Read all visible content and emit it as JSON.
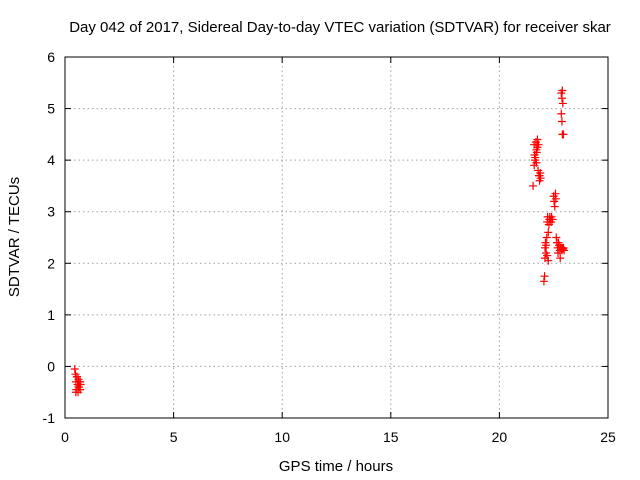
{
  "chart_data": {
    "type": "scatter",
    "title": "Day 042 of 2017, Sidereal Day-to-day VTEC variation (SDTVAR) for receiver skar",
    "xlabel": "GPS time / hours",
    "ylabel": "SDTVAR / TECUs",
    "xlim": [
      0,
      25
    ],
    "ylim": [
      -1,
      6
    ],
    "xticks": [
      "0",
      "5",
      "10",
      "15",
      "20",
      "25"
    ],
    "yticks": [
      "-1",
      "0",
      "1",
      "2",
      "3",
      "4",
      "5",
      "6"
    ],
    "grid": true,
    "marker": "plus",
    "color": "#ff0000",
    "series": [
      {
        "x": [
          0.45,
          0.48,
          0.5,
          0.52,
          0.55,
          0.58,
          0.6,
          0.62,
          0.65,
          0.68,
          0.7,
          0.72,
          0.5,
          0.55,
          0.62,
          0.7,
          21.55,
          21.6,
          21.6,
          21.62,
          21.65,
          21.68,
          21.7,
          21.7,
          21.72,
          21.75,
          21.78,
          21.8,
          21.82,
          21.85,
          21.88,
          21.9,
          21.65,
          21.75,
          21.85,
          22.05,
          22.08,
          22.1,
          22.1,
          22.12,
          22.15,
          22.15,
          22.18,
          22.2,
          22.2,
          22.22,
          22.25,
          22.25,
          22.28,
          22.3,
          22.32,
          22.35,
          22.38,
          22.4,
          22.45,
          22.5,
          22.52,
          22.55,
          22.58,
          22.6,
          22.62,
          22.65,
          22.68,
          22.7,
          22.72,
          22.75,
          22.78,
          22.8,
          22.82,
          22.85,
          22.88,
          22.9,
          22.92,
          22.95,
          22.98,
          22.85,
          22.88,
          22.9,
          22.92,
          22.85,
          22.88,
          22.9,
          22.95
        ],
        "y": [
          -0.05,
          -0.15,
          -0.3,
          -0.45,
          -0.2,
          -0.35,
          -0.5,
          -0.25,
          -0.4,
          -0.3,
          -0.45,
          -0.35,
          -0.5,
          -0.2,
          -0.4,
          -0.3,
          3.5,
          3.9,
          4.3,
          4.1,
          4.0,
          4.35,
          3.95,
          4.2,
          4.15,
          4.4,
          3.8,
          4.3,
          3.7,
          3.6,
          3.75,
          3.65,
          4.05,
          4.25,
          3.7,
          1.65,
          1.75,
          2.1,
          2.3,
          2.4,
          2.2,
          2.35,
          2.5,
          2.8,
          2.15,
          2.9,
          2.6,
          2.05,
          2.75,
          2.85,
          2.9,
          2.85,
          2.8,
          2.9,
          2.85,
          3.3,
          3.2,
          3.1,
          3.35,
          3.25,
          2.5,
          2.4,
          2.3,
          2.2,
          2.4,
          2.35,
          2.25,
          2.1,
          2.3,
          2.3,
          2.25,
          2.3,
          2.28,
          2.3,
          2.25,
          5.3,
          5.2,
          5.35,
          5.1,
          4.9,
          4.75,
          4.5,
          4.5
        ]
      }
    ]
  }
}
